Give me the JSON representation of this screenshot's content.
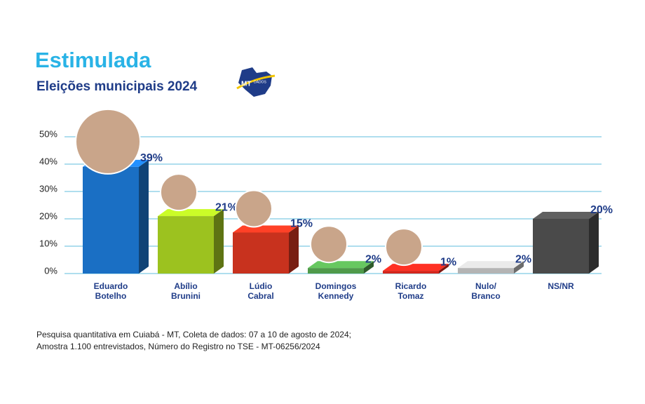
{
  "chart_data": {
    "type": "bar3d",
    "title": "Estimulada",
    "subtitle": "Eleições municipais 2024",
    "logo_text": [
      "MT",
      "DADOS"
    ],
    "categories": [
      "Eduardo\nBotelho",
      "Abílio\nBrunini",
      "Lúdio\nCabral",
      "Domingos\nKennedy",
      "Ricardo\nTomaz",
      "Nulo/\nBranco",
      "NS/NR"
    ],
    "values": [
      39,
      21,
      15,
      2,
      1,
      2,
      20
    ],
    "value_labels": [
      "39%",
      "21%",
      "15%",
      "2%",
      "1%",
      "2%",
      "20%"
    ],
    "colors": [
      "#1a6fc4",
      "#9cc21f",
      "#c8321e",
      "#4f9a4a",
      "#d4261c",
      "#b4b4b4",
      "#4a4a4a"
    ],
    "ylim": [
      0,
      50
    ],
    "yticks": [
      {
        "value": 0,
        "label": "0%"
      },
      {
        "value": 10,
        "label": "10%"
      },
      {
        "value": 20,
        "label": "20%"
      },
      {
        "value": 30,
        "label": "30%"
      },
      {
        "value": 40,
        "label": "40%"
      },
      {
        "value": 50,
        "label": "50%"
      }
    ],
    "grid": true,
    "footnote": [
      "Pesquisa quantitativa em Cuiabá - MT, Coleta de dados: 07 a 10 de agosto de 2024;",
      "Amostra 1.100 entrevistados, Número do Registro no TSE - MT-06256/2024"
    ]
  }
}
